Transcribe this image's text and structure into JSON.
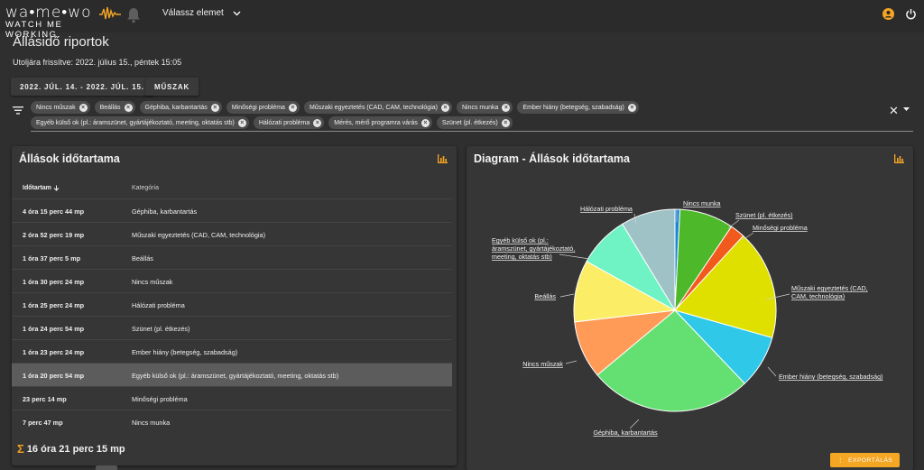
{
  "header": {
    "logo_main": "wa•me•wo",
    "logo_sub": "WATCH ME WORKING",
    "selector_label": "Válassz elemet",
    "icons": [
      "bell-icon",
      "chevron-down-icon",
      "user-icon",
      "power-icon"
    ],
    "accent_color": "#f5a623"
  },
  "page": {
    "title": "Állásidő riportok",
    "last_updated": "Utoljára frissítve: 2022. július 15., péntek 15:05",
    "date_range": "2022. JÚL. 14. - 2022. JÚL. 15.",
    "shift_button": "MŰSZAK"
  },
  "filters": {
    "chips": [
      "Nincs műszak",
      "Beállás",
      "Géphiba, karbantartás",
      "Minőségi probléma",
      "Műszaki egyeztetés (CAD, CAM, technológia)",
      "Nincs munka",
      "Ember hiány (betegség, szabadság)",
      "Egyéb külső ok (pl.: áramszünet, gyártájékoztató, meeting, oktatás stb)",
      "Hálózati probléma",
      "Mérés, mérő programra várás",
      "Szünet (pl. étkezés)"
    ]
  },
  "table_card": {
    "title": "Állások időtartama",
    "col_duration": "Időtartam",
    "col_category": "Kategória",
    "rows": [
      {
        "duration": "4 óra 15 perc 44 mp",
        "category": "Géphiba, karbantartás"
      },
      {
        "duration": "2 óra 52 perc 19 mp",
        "category": "Műszaki egyeztetés (CAD, CAM, technológia)"
      },
      {
        "duration": "1 óra 37 perc 5 mp",
        "category": "Beállás"
      },
      {
        "duration": "1 óra 30 perc 24 mp",
        "category": "Nincs műszak"
      },
      {
        "duration": "1 óra 25 perc 24 mp",
        "category": "Hálózati probléma"
      },
      {
        "duration": "1 óra 24 perc 54 mp",
        "category": "Szünet (pl. étkezés)"
      },
      {
        "duration": "1 óra 23 perc 24 mp",
        "category": "Ember hiány (betegség, szabadság)"
      },
      {
        "duration": "1 óra 20 perc 54 mp",
        "category": "Egyéb külső ok (pl.: áramszünet, gyártájékoztató, meeting, oktatás stb)"
      },
      {
        "duration": "23 perc 14 mp",
        "category": "Minőségi probléma"
      },
      {
        "duration": "7 perc 47 mp",
        "category": "Nincs munka"
      }
    ],
    "selected_row": 7,
    "total": "16 óra 21 perc 15 mp"
  },
  "chart_card": {
    "title": "Diagram - Állások időtartama",
    "export_label": "EXPORTÁLÁS"
  },
  "chart_data": {
    "type": "pie",
    "title": "Diagram - Állások időtartama",
    "slices": [
      {
        "label": "Nincs munka",
        "value": 0.1297,
        "color": "#1a88d8"
      },
      {
        "label": "Szünet (pl. étkezés)",
        "value": 1.415,
        "color": "#4cb82a"
      },
      {
        "label": "Minőségi probléma",
        "value": 0.3872,
        "color": "#f25a1d"
      },
      {
        "label": "Műszaki egyeztetés (CAD, CAM, technológia)",
        "value": 2.872,
        "color": "#dfe000"
      },
      {
        "label": "Ember hiány (betegség, szabadság)",
        "value": 1.39,
        "color": "#2fc8e8"
      },
      {
        "label": "Géphiba, karbantartás",
        "value": 4.262,
        "color": "#64e072"
      },
      {
        "label": "Nincs műszak",
        "value": 1.507,
        "color": "#ff9a57"
      },
      {
        "label": "Beállás",
        "value": 1.618,
        "color": "#fbee66"
      },
      {
        "label": "Egyéb külső ok (pl.: áramszünet, gyártájékoztató, meeting, oktatás stb)",
        "value": 1.348,
        "color": "#6ff3c4"
      },
      {
        "label": "Hálózati probléma",
        "value": 1.423,
        "color": "#9fc2c6"
      }
    ],
    "slice_labels": [
      [
        "Nincs munka"
      ],
      [
        "Szünet (pl. étkezés)"
      ],
      [
        "Minőségi probléma"
      ],
      [
        "Műszaki egyeztetés (CAD,",
        "CAM, technológia)"
      ],
      [
        "Ember hiány (betegség, szabadság)"
      ],
      [
        "Géphiba, karbantartás"
      ],
      [
        "Nincs műszak"
      ],
      [
        "Beállás"
      ],
      [
        "Egyéb külső ok (pl.:",
        "áramszünet, gyártájékoztató,",
        "meeting, oktatás stb)"
      ],
      [
        "Hálózati probléma"
      ]
    ]
  }
}
